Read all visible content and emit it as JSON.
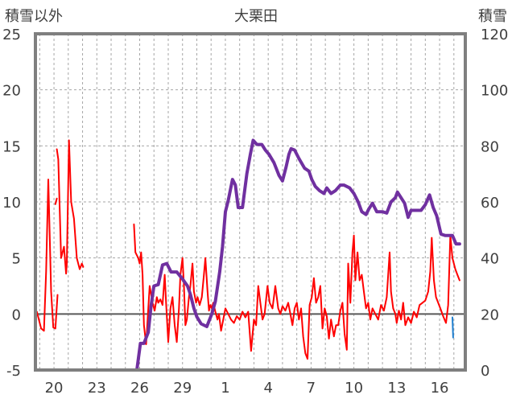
{
  "chart_data": {
    "type": "line",
    "title": "大栗田",
    "left_axis_label": "積雪以外",
    "right_axis_label": "積雪",
    "x_range": [
      18.7,
      48.8
    ],
    "x_ticks": [
      {
        "x": 20,
        "label": "20"
      },
      {
        "x": 23,
        "label": "23"
      },
      {
        "x": 26,
        "label": "26"
      },
      {
        "x": 29,
        "label": "29"
      },
      {
        "x": 32,
        "label": "1"
      },
      {
        "x": 35,
        "label": "4"
      },
      {
        "x": 38,
        "label": "7"
      },
      {
        "x": 41,
        "label": "10"
      },
      {
        "x": 44,
        "label": "13"
      },
      {
        "x": 47,
        "label": "16"
      }
    ],
    "y_left": {
      "min": -5,
      "max": 25,
      "ticks": [
        -5,
        0,
        5,
        10,
        15,
        20,
        25
      ]
    },
    "y_right": {
      "min": 0,
      "max": 120,
      "ticks": [
        0,
        20,
        40,
        60,
        80,
        100,
        120
      ]
    },
    "grid": true,
    "series": [
      {
        "axis": "left",
        "color": "#ff0000",
        "width": 2,
        "segments": [
          [
            [
              18.8,
              0.2
            ],
            [
              19.1,
              -1.3
            ],
            [
              19.3,
              -1.5
            ],
            [
              19.45,
              3.8
            ],
            [
              19.6,
              12.0
            ],
            [
              19.8,
              2.0
            ],
            [
              19.95,
              -1.2
            ],
            [
              20.1,
              -1.3
            ],
            [
              20.25,
              1.7
            ]
          ],
          [
            [
              20.1,
              9.8
            ],
            [
              20.2,
              10.3
            ]
          ],
          [
            [
              20.2,
              14.7
            ],
            [
              20.3,
              13.8
            ],
            [
              20.5,
              5.0
            ],
            [
              20.7,
              6.0
            ],
            [
              20.85,
              3.6
            ],
            [
              20.9,
              4.5
            ],
            [
              21.05,
              15.5
            ],
            [
              21.2,
              10.0
            ],
            [
              21.4,
              8.5
            ],
            [
              21.6,
              5.0
            ],
            [
              21.8,
              4.0
            ],
            [
              21.95,
              4.5
            ],
            [
              22.05,
              4.2
            ]
          ],
          [
            [
              25.6,
              8.0
            ],
            [
              25.7,
              5.5
            ],
            [
              25.9,
              5.0
            ],
            [
              26.0,
              4.5
            ],
            [
              26.1,
              5.5
            ],
            [
              26.2,
              3.5
            ],
            [
              26.3,
              -1.0
            ],
            [
              26.45,
              -2.7
            ],
            [
              26.6,
              0.5
            ],
            [
              26.7,
              2.5
            ],
            [
              26.9,
              1.0
            ],
            [
              27.05,
              0.3
            ],
            [
              27.2,
              1.5
            ],
            [
              27.3,
              1.0
            ],
            [
              27.45,
              1.3
            ],
            [
              27.6,
              0.8
            ],
            [
              27.75,
              3.5
            ],
            [
              27.85,
              1.0
            ],
            [
              28.0,
              -2.5
            ],
            [
              28.15,
              0.5
            ],
            [
              28.3,
              1.5
            ],
            [
              28.45,
              -1.0
            ],
            [
              28.6,
              -2.5
            ],
            [
              28.75,
              0.5
            ],
            [
              28.85,
              3.5
            ],
            [
              29.0,
              5.0
            ],
            [
              29.1,
              2.5
            ],
            [
              29.2,
              -1.0
            ],
            [
              29.3,
              -0.5
            ],
            [
              29.45,
              1.5
            ],
            [
              29.55,
              2.5
            ],
            [
              29.7,
              4.5
            ],
            [
              29.8,
              2.0
            ],
            [
              29.95,
              1.0
            ],
            [
              30.05,
              1.5
            ],
            [
              30.2,
              0.8
            ],
            [
              30.35,
              1.5
            ],
            [
              30.5,
              3.5
            ],
            [
              30.6,
              5.0
            ],
            [
              30.75,
              2.0
            ],
            [
              30.85,
              0.3
            ],
            [
              30.95,
              0.8
            ],
            [
              31.05,
              0.5
            ],
            [
              31.15,
              1.0
            ],
            [
              31.3,
              0.2
            ],
            [
              31.45,
              -0.5
            ],
            [
              31.55,
              0.0
            ],
            [
              31.7,
              -1.5
            ],
            [
              31.85,
              -0.5
            ],
            [
              32.0,
              0.5
            ],
            [
              32.2,
              0.0
            ],
            [
              32.4,
              -0.5
            ],
            [
              32.6,
              -0.8
            ],
            [
              32.8,
              -0.2
            ],
            [
              33.0,
              -0.5
            ],
            [
              33.2,
              0.2
            ],
            [
              33.4,
              -0.3
            ],
            [
              33.6,
              0.2
            ],
            [
              33.8,
              -3.3
            ],
            [
              34.0,
              -0.5
            ],
            [
              34.15,
              -1.0
            ],
            [
              34.3,
              2.5
            ],
            [
              34.45,
              1.0
            ],
            [
              34.6,
              -0.5
            ],
            [
              34.75,
              0.0
            ],
            [
              34.95,
              2.5
            ],
            [
              35.1,
              1.0
            ],
            [
              35.3,
              0.5
            ],
            [
              35.5,
              2.5
            ],
            [
              35.7,
              0.5
            ],
            [
              35.85,
              0.0
            ],
            [
              36.0,
              0.7
            ],
            [
              36.2,
              0.3
            ],
            [
              36.4,
              1.0
            ],
            [
              36.55,
              0.0
            ],
            [
              36.7,
              -1.0
            ],
            [
              36.85,
              0.5
            ],
            [
              37.0,
              1.0
            ],
            [
              37.15,
              -0.5
            ],
            [
              37.3,
              0.5
            ],
            [
              37.45,
              -2.0
            ],
            [
              37.6,
              -3.5
            ],
            [
              37.75,
              -4.0
            ],
            [
              37.9,
              0.8
            ],
            [
              38.05,
              1.5
            ],
            [
              38.2,
              3.2
            ],
            [
              38.35,
              1.0
            ],
            [
              38.5,
              1.5
            ],
            [
              38.65,
              2.5
            ],
            [
              38.8,
              -1.3
            ],
            [
              38.95,
              0.5
            ],
            [
              39.1,
              -0.2
            ],
            [
              39.25,
              -2.2
            ],
            [
              39.4,
              -0.5
            ],
            [
              39.6,
              -2.0
            ],
            [
              39.75,
              -1.0
            ],
            [
              39.9,
              -1.0
            ],
            [
              40.05,
              0.3
            ],
            [
              40.2,
              1.0
            ],
            [
              40.35,
              -1.8
            ],
            [
              40.5,
              -3.2
            ],
            [
              40.6,
              4.5
            ],
            [
              40.75,
              1.0
            ],
            [
              40.9,
              5.5
            ],
            [
              41.0,
              7.0
            ],
            [
              41.1,
              3.0
            ],
            [
              41.25,
              5.5
            ],
            [
              41.4,
              3.0
            ],
            [
              41.55,
              3.5
            ],
            [
              41.7,
              2.0
            ],
            [
              41.85,
              0.5
            ],
            [
              42.0,
              1.0
            ],
            [
              42.15,
              -0.5
            ],
            [
              42.3,
              0.5
            ],
            [
              42.5,
              0.0
            ],
            [
              42.7,
              -0.5
            ],
            [
              42.9,
              0.8
            ],
            [
              43.1,
              0.3
            ],
            [
              43.3,
              1.5
            ],
            [
              43.5,
              5.5
            ],
            [
              43.6,
              2.0
            ],
            [
              43.75,
              0.5
            ],
            [
              43.9,
              0.0
            ],
            [
              44.0,
              -0.8
            ],
            [
              44.15,
              0.3
            ],
            [
              44.3,
              -0.5
            ],
            [
              44.45,
              1.0
            ],
            [
              44.6,
              -1.0
            ],
            [
              44.8,
              -0.3
            ],
            [
              45.0,
              -0.8
            ],
            [
              45.2,
              0.2
            ],
            [
              45.4,
              -0.3
            ],
            [
              45.6,
              0.8
            ],
            [
              45.8,
              1.0
            ],
            [
              46.0,
              1.2
            ],
            [
              46.2,
              2.0
            ],
            [
              46.35,
              3.8
            ],
            [
              46.45,
              6.8
            ],
            [
              46.6,
              3.0
            ],
            [
              46.75,
              1.5
            ],
            [
              46.9,
              1.0
            ],
            [
              47.05,
              0.5
            ],
            [
              47.25,
              -0.2
            ],
            [
              47.45,
              -0.8
            ],
            [
              47.6,
              0.8
            ],
            [
              47.75,
              7.0
            ],
            [
              47.9,
              5.0
            ],
            [
              48.1,
              4.0
            ],
            [
              48.25,
              3.5
            ],
            [
              48.4,
              3.0
            ]
          ]
        ]
      },
      {
        "axis": "right",
        "color": "#7030a0",
        "width": 4,
        "segments": [
          [
            [
              18.7,
              0
            ],
            [
              22.2,
              0
            ]
          ],
          [
            [
              25.2,
              0
            ],
            [
              25.8,
              0
            ],
            [
              26.05,
              9.5
            ],
            [
              26.3,
              9.5
            ],
            [
              26.6,
              13.5
            ],
            [
              26.8,
              23.0
            ],
            [
              27.0,
              30.0
            ],
            [
              27.3,
              30.5
            ],
            [
              27.6,
              37.5
            ],
            [
              27.9,
              38.0
            ],
            [
              28.2,
              35.0
            ],
            [
              28.6,
              35.0
            ],
            [
              29.0,
              32.5
            ],
            [
              29.35,
              30.0
            ],
            [
              29.55,
              27.0
            ],
            [
              29.8,
              22.0
            ],
            [
              30.0,
              19.0
            ],
            [
              30.3,
              16.5
            ],
            [
              30.7,
              15.5
            ],
            [
              31.05,
              20.0
            ],
            [
              31.3,
              24.5
            ],
            [
              31.6,
              35.0
            ],
            [
              31.8,
              44.0
            ],
            [
              32.0,
              56.5
            ],
            [
              32.2,
              60.5
            ],
            [
              32.5,
              68.0
            ],
            [
              32.7,
              66.0
            ],
            [
              32.9,
              58.0
            ],
            [
              33.2,
              58.0
            ],
            [
              33.5,
              70.0
            ],
            [
              33.75,
              77.0
            ],
            [
              33.95,
              82.0
            ],
            [
              34.2,
              80.5
            ],
            [
              34.55,
              80.5
            ],
            [
              34.8,
              78.5
            ],
            [
              35.05,
              77.0
            ],
            [
              35.4,
              74.0
            ],
            [
              35.75,
              69.5
            ],
            [
              36.0,
              67.5
            ],
            [
              36.25,
              72.5
            ],
            [
              36.45,
              77.0
            ],
            [
              36.6,
              79.0
            ],
            [
              36.85,
              78.5
            ],
            [
              37.15,
              75.5
            ],
            [
              37.55,
              72.0
            ],
            [
              37.85,
              71.0
            ],
            [
              38.05,
              68.0
            ],
            [
              38.3,
              65.5
            ],
            [
              38.6,
              64.0
            ],
            [
              38.9,
              63.0
            ],
            [
              39.1,
              65.0
            ],
            [
              39.4,
              63.0
            ],
            [
              39.7,
              64.0
            ],
            [
              40.05,
              66.0
            ],
            [
              40.3,
              66.0
            ],
            [
              40.7,
              65.0
            ],
            [
              41.0,
              63.0
            ],
            [
              41.3,
              60.0
            ],
            [
              41.55,
              56.5
            ],
            [
              41.85,
              55.5
            ],
            [
              42.05,
              57.5
            ],
            [
              42.3,
              59.5
            ],
            [
              42.6,
              56.5
            ],
            [
              43.0,
              56.5
            ],
            [
              43.3,
              56.0
            ],
            [
              43.6,
              60.0
            ],
            [
              43.9,
              61.5
            ],
            [
              44.05,
              63.5
            ],
            [
              44.3,
              61.5
            ],
            [
              44.55,
              59.5
            ],
            [
              44.8,
              54.5
            ],
            [
              45.0,
              57.0
            ],
            [
              45.4,
              57.0
            ],
            [
              45.7,
              57.0
            ],
            [
              46.0,
              59.0
            ],
            [
              46.3,
              62.5
            ],
            [
              46.55,
              58.0
            ],
            [
              46.8,
              55.0
            ],
            [
              47.1,
              48.5
            ],
            [
              47.4,
              48.0
            ],
            [
              47.9,
              48.0
            ],
            [
              48.15,
              45.0
            ],
            [
              48.4,
              45.0
            ]
          ]
        ]
      },
      {
        "axis": "left",
        "color": "#1f7fd0",
        "width": 2,
        "segments": [
          [
            [
              47.9,
              -0.3
            ],
            [
              47.95,
              -2.1
            ]
          ]
        ]
      }
    ]
  }
}
